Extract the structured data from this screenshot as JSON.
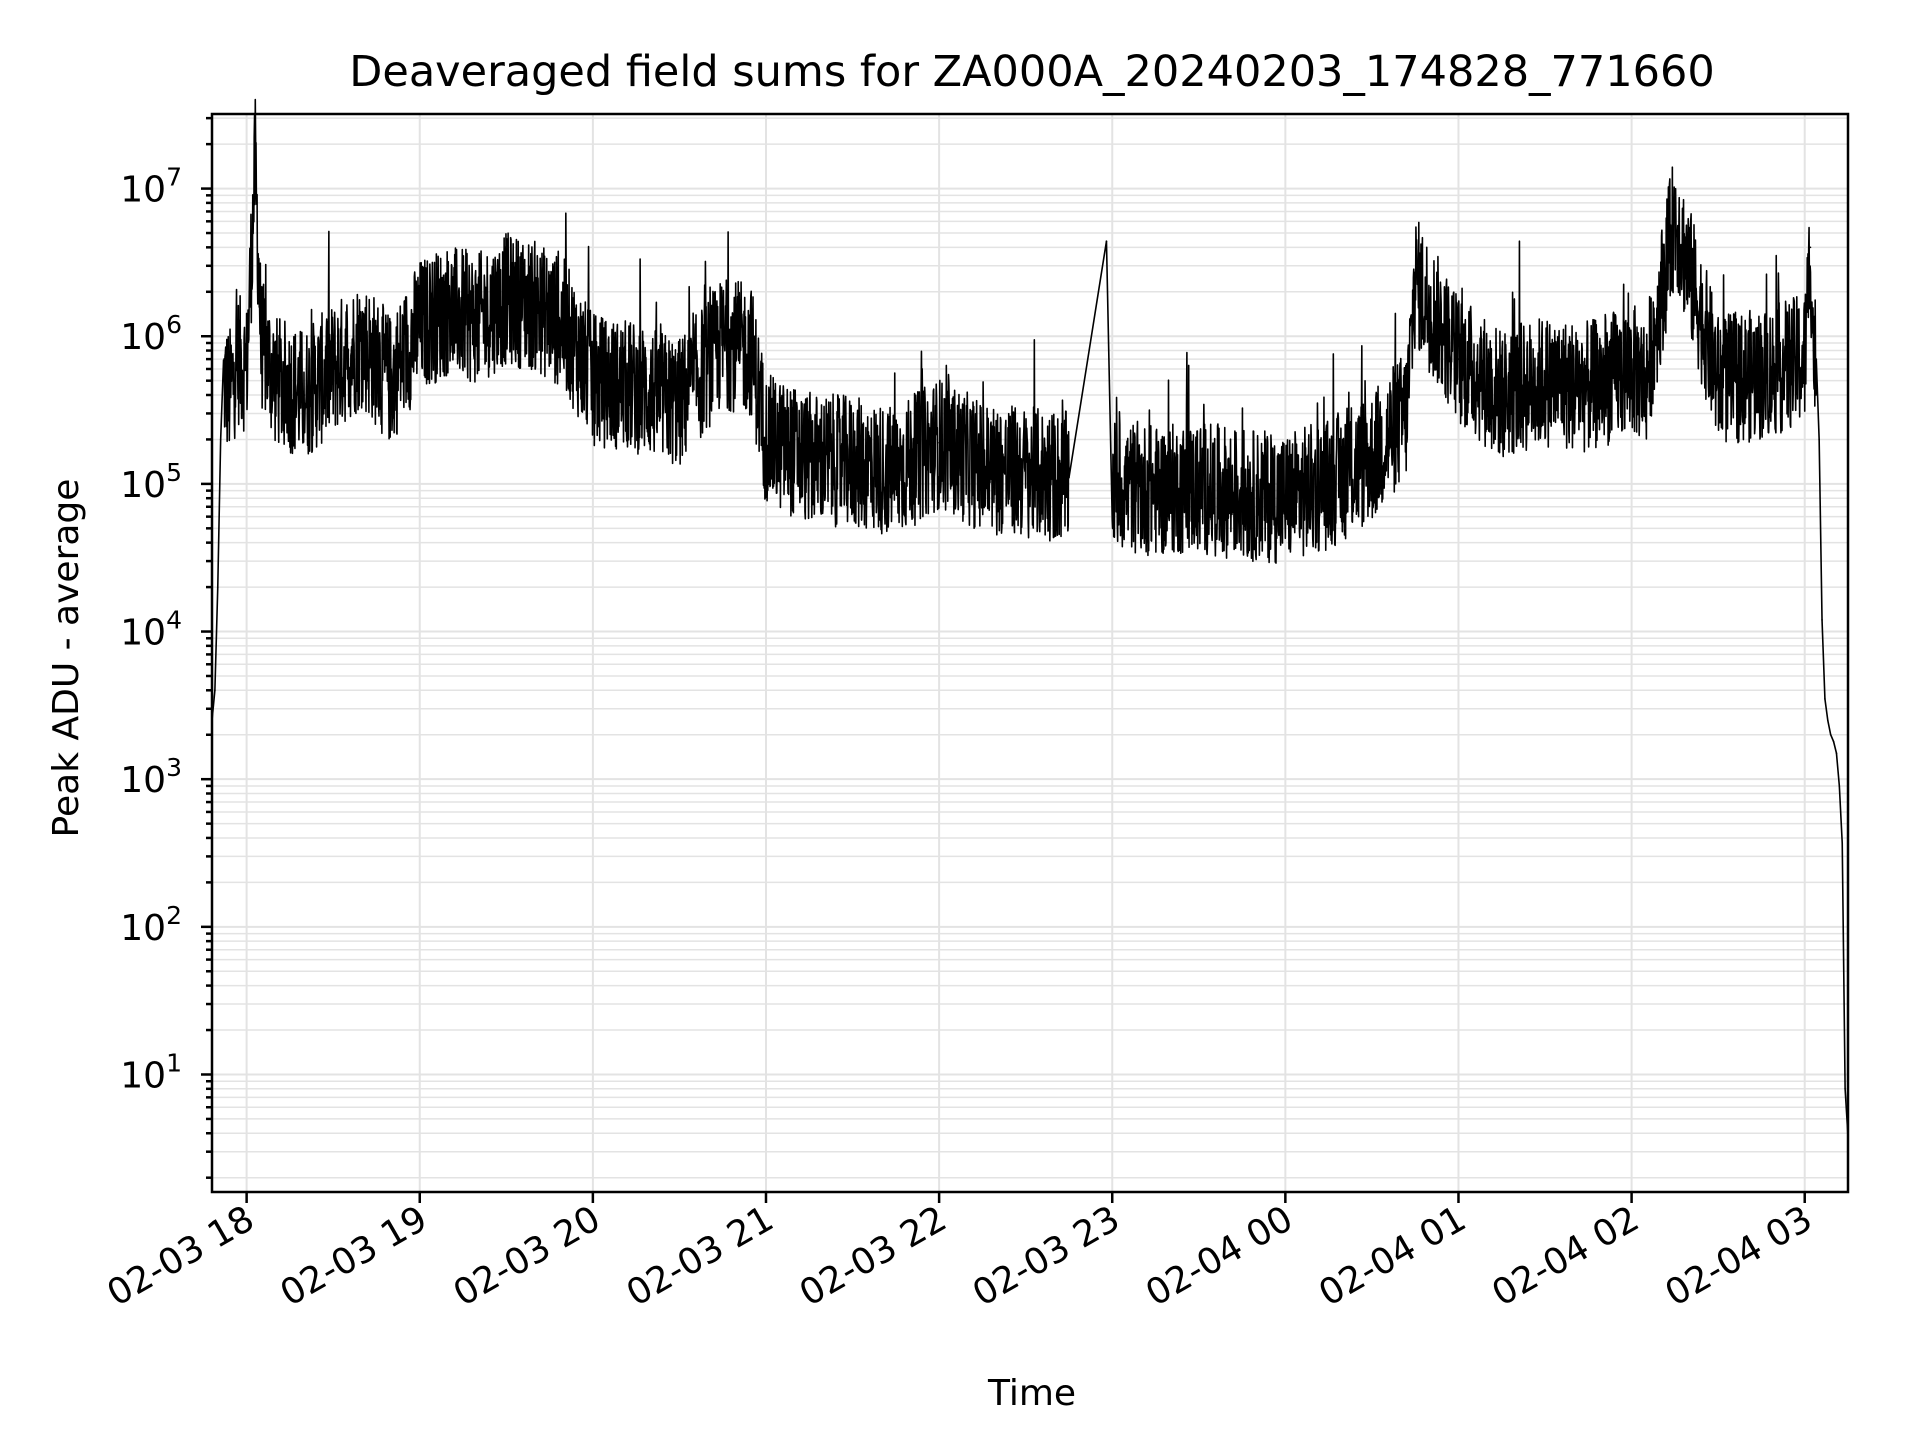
{
  "chart_data": {
    "type": "line",
    "title": "Deaveraged field sums for ZA000A_20240203_174828_771660",
    "xlabel": "Time",
    "ylabel": "Peak ADU - average",
    "yscale": "log",
    "ylim": [
      1.6,
      32000000
    ],
    "xlim": [
      "02-03 17:48",
      "02-04 03:15"
    ],
    "grid": true,
    "legend": "none",
    "line_color": "#000000",
    "x_tick_labels": [
      "02-03 18",
      "02-03 19",
      "02-03 20",
      "02-03 21",
      "02-03 22",
      "02-03 23",
      "02-04 00",
      "02-04 01",
      "02-04 02",
      "02-04 03"
    ],
    "y_tick_labels": [
      {
        "base": "10",
        "exp": "1"
      },
      {
        "base": "10",
        "exp": "2"
      },
      {
        "base": "10",
        "exp": "3"
      },
      {
        "base": "10",
        "exp": "4"
      },
      {
        "base": "10",
        "exp": "5"
      },
      {
        "base": "10",
        "exp": "6"
      },
      {
        "base": "10",
        "exp": "7"
      }
    ],
    "series": [
      {
        "x": [
          "02-03 17:48",
          "02-03 17:49",
          "02-03 17:50",
          "02-03 17:51",
          "02-03 17:52",
          "02-03 17:54",
          "02-03 17:57",
          "02-03 18:00",
          "02-03 18:03",
          "02-03 18:05",
          "02-03 18:10",
          "02-03 18:20",
          "02-03 18:30",
          "02-03 18:40",
          "02-03 18:50",
          "02-03 19:00",
          "02-03 19:10",
          "02-03 19:20",
          "02-03 19:30",
          "02-03 19:40",
          "02-03 19:50",
          "02-03 20:00",
          "02-03 20:15",
          "02-03 20:30",
          "02-03 20:45",
          "02-03 20:55",
          "02-03 21:00",
          "02-03 21:15",
          "02-03 21:30",
          "02-03 21:45",
          "02-03 22:00",
          "02-03 22:15",
          "02-03 22:30",
          "02-03 22:45",
          "02-03 22:58",
          "02-03 23:00",
          "02-03 23:15",
          "02-03 23:30",
          "02-03 23:45",
          "02-04 00:00",
          "02-04 00:15",
          "02-04 00:30",
          "02-04 00:42",
          "02-04 00:45",
          "02-04 01:00",
          "02-04 01:15",
          "02-04 01:30",
          "02-04 01:45",
          "02-04 02:00",
          "02-04 02:05",
          "02-04 02:15",
          "02-04 02:30",
          "02-04 02:45",
          "02-04 03:00",
          "02-04 03:02",
          "02-04 03:03",
          "02-04 03:04",
          "02-04 03:05",
          "02-04 03:06",
          "02-04 03:07",
          "02-04 03:08",
          "02-04 03:09",
          "02-04 03:10",
          "02-04 03:11",
          "02-04 03:12",
          "02-04 03:13",
          "02-04 03:14",
          "02-04 03:15"
        ],
        "y": [
          2500,
          4000,
          20000,
          200000,
          500000,
          400000,
          700000,
          600000,
          15000000,
          900000,
          500000,
          400000,
          600000,
          900000,
          500000,
          1200000,
          1500000,
          1300000,
          1800000,
          1600000,
          1200000,
          500000,
          450000,
          350000,
          900000,
          800000,
          200000,
          150000,
          140000,
          120000,
          190000,
          130000,
          120000,
          110000,
          4400000,
          100000,
          90000,
          95000,
          85000,
          80000,
          100000,
          150000,
          300000,
          2400000,
          700000,
          400000,
          500000,
          450000,
          600000,
          500000,
          6500000,
          500000,
          550000,
          700000,
          4000000,
          800000,
          700000,
          200000,
          12000,
          3500,
          2500,
          2000,
          1800,
          1500,
          900,
          370,
          8,
          3.8
        ]
      }
    ]
  }
}
